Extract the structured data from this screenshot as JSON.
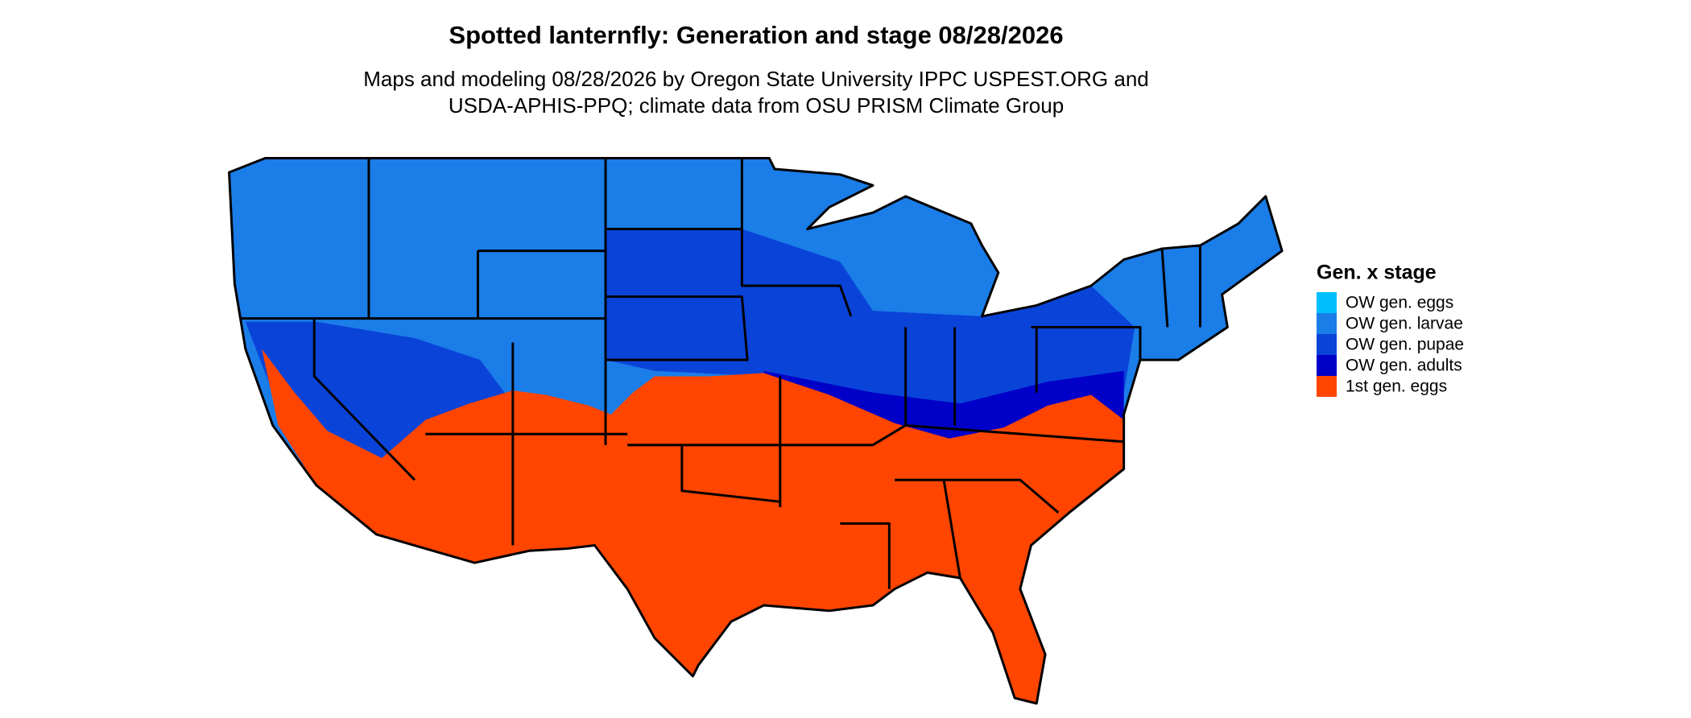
{
  "title": "Spotted lanternfly: Generation and stage 08/28/2026",
  "subtitle": [
    "Maps and modeling 08/28/2026 by Oregon State University IPPC USPEST.ORG and",
    "USDA-APHIS-PPQ; climate data from OSU PRISM Climate Group"
  ],
  "legend": {
    "title": "Gen. x stage",
    "items": [
      {
        "label": "OW gen. eggs",
        "color": "#00bfff"
      },
      {
        "label": "OW gen. larvae",
        "color": "#1a7de8"
      },
      {
        "label": "OW gen. pupae",
        "color": "#0a43d8"
      },
      {
        "label": "OW gen. adults",
        "color": "#0000c8"
      },
      {
        "label": "1st gen. eggs",
        "color": "#ff4500"
      }
    ]
  }
}
